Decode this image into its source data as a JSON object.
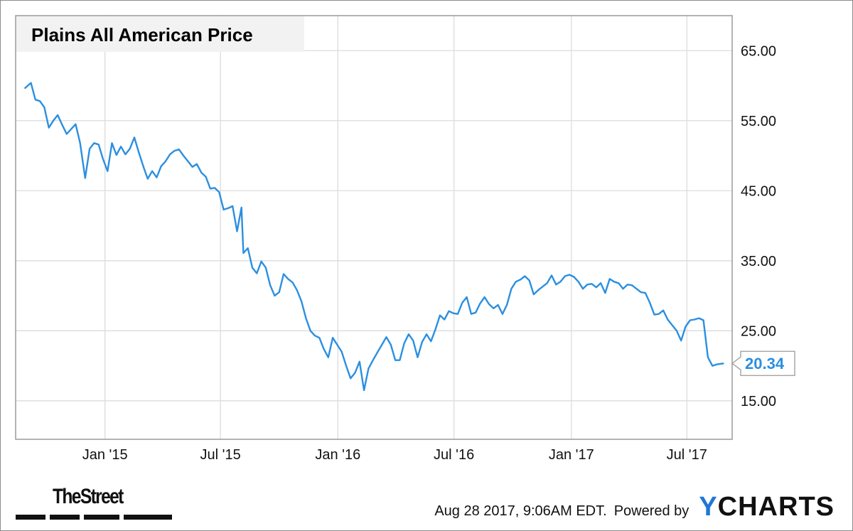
{
  "chart_data": {
    "type": "line",
    "title": "Plains All American Price",
    "xlabel": "",
    "ylabel": "",
    "x_tick_labels": [
      "Jan '15",
      "Jul '15",
      "Jan '16",
      "Jul '16",
      "Jan '17",
      "Jul '17"
    ],
    "y_tick_labels": [
      "65.00",
      "55.00",
      "45.00",
      "35.00",
      "25.00",
      "15.00"
    ],
    "ylim": [
      9.5,
      70
    ],
    "grid": true,
    "last_value_label": "20.34",
    "series": [
      {
        "color": "#2b8fe0",
        "points": [
          [
            "2014-08-28",
            59.6
          ],
          [
            "2014-09-07",
            60.4
          ],
          [
            "2014-09-14",
            58.0
          ],
          [
            "2014-09-21",
            57.8
          ],
          [
            "2014-09-28",
            56.9
          ],
          [
            "2014-10-05",
            54.0
          ],
          [
            "2014-10-12",
            55.0
          ],
          [
            "2014-10-19",
            55.8
          ],
          [
            "2014-10-26",
            54.4
          ],
          [
            "2014-11-02",
            53.1
          ],
          [
            "2014-11-09",
            53.8
          ],
          [
            "2014-11-16",
            54.5
          ],
          [
            "2014-11-23",
            51.8
          ],
          [
            "2014-12-01",
            46.8
          ],
          [
            "2014-12-08",
            51.0
          ],
          [
            "2014-12-15",
            51.8
          ],
          [
            "2014-12-22",
            51.6
          ],
          [
            "2014-12-29",
            49.5
          ],
          [
            "2015-01-05",
            47.8
          ],
          [
            "2015-01-12",
            51.8
          ],
          [
            "2015-01-19",
            50.1
          ],
          [
            "2015-01-26",
            51.3
          ],
          [
            "2015-02-02",
            50.2
          ],
          [
            "2015-02-09",
            51.0
          ],
          [
            "2015-02-16",
            52.6
          ],
          [
            "2015-02-23",
            50.5
          ],
          [
            "2015-03-02",
            48.5
          ],
          [
            "2015-03-09",
            46.7
          ],
          [
            "2015-03-16",
            47.8
          ],
          [
            "2015-03-23",
            46.9
          ],
          [
            "2015-03-30",
            48.5
          ],
          [
            "2015-04-06",
            49.2
          ],
          [
            "2015-04-13",
            50.2
          ],
          [
            "2015-04-20",
            50.7
          ],
          [
            "2015-04-27",
            50.9
          ],
          [
            "2015-05-04",
            50.0
          ],
          [
            "2015-05-11",
            49.2
          ],
          [
            "2015-05-18",
            48.4
          ],
          [
            "2015-05-25",
            48.8
          ],
          [
            "2015-06-01",
            47.6
          ],
          [
            "2015-06-08",
            47.0
          ],
          [
            "2015-06-15",
            45.3
          ],
          [
            "2015-06-22",
            45.4
          ],
          [
            "2015-06-29",
            44.8
          ],
          [
            "2015-07-06",
            42.3
          ],
          [
            "2015-07-13",
            42.5
          ],
          [
            "2015-07-20",
            42.8
          ],
          [
            "2015-07-27",
            39.2
          ],
          [
            "2015-08-03",
            42.6
          ],
          [
            "2015-08-06",
            36.1
          ],
          [
            "2015-08-13",
            36.8
          ],
          [
            "2015-08-20",
            34.0
          ],
          [
            "2015-08-27",
            33.2
          ],
          [
            "2015-09-03",
            34.9
          ],
          [
            "2015-09-10",
            34.0
          ],
          [
            "2015-09-17",
            31.5
          ],
          [
            "2015-09-24",
            30.0
          ],
          [
            "2015-10-01",
            30.5
          ],
          [
            "2015-10-08",
            33.1
          ],
          [
            "2015-10-15",
            32.4
          ],
          [
            "2015-10-22",
            31.9
          ],
          [
            "2015-10-29",
            30.8
          ],
          [
            "2015-11-05",
            29.2
          ],
          [
            "2015-11-12",
            26.8
          ],
          [
            "2015-11-19",
            25.0
          ],
          [
            "2015-11-26",
            24.3
          ],
          [
            "2015-12-03",
            24.0
          ],
          [
            "2015-12-10",
            22.4
          ],
          [
            "2015-12-17",
            21.2
          ],
          [
            "2015-12-24",
            24.0
          ],
          [
            "2015-12-31",
            23.0
          ],
          [
            "2016-01-07",
            22.0
          ],
          [
            "2016-01-14",
            20.0
          ],
          [
            "2016-01-21",
            18.2
          ],
          [
            "2016-01-28",
            19.0
          ],
          [
            "2016-02-04",
            20.6
          ],
          [
            "2016-02-11",
            16.5
          ],
          [
            "2016-02-18",
            19.6
          ],
          [
            "2016-02-25",
            20.8
          ],
          [
            "2016-03-03",
            21.9
          ],
          [
            "2016-03-10",
            23.0
          ],
          [
            "2016-03-17",
            24.1
          ],
          [
            "2016-03-24",
            23.0
          ],
          [
            "2016-03-31",
            20.8
          ],
          [
            "2016-04-07",
            20.8
          ],
          [
            "2016-04-14",
            23.2
          ],
          [
            "2016-04-21",
            24.5
          ],
          [
            "2016-04-28",
            23.6
          ],
          [
            "2016-05-05",
            21.2
          ],
          [
            "2016-05-12",
            23.4
          ],
          [
            "2016-05-19",
            24.5
          ],
          [
            "2016-05-26",
            23.5
          ],
          [
            "2016-06-02",
            25.2
          ],
          [
            "2016-06-09",
            27.2
          ],
          [
            "2016-06-16",
            26.6
          ],
          [
            "2016-06-23",
            27.8
          ],
          [
            "2016-06-30",
            27.5
          ],
          [
            "2016-07-07",
            27.4
          ],
          [
            "2016-07-14",
            29.0
          ],
          [
            "2016-07-21",
            29.8
          ],
          [
            "2016-07-28",
            27.4
          ],
          [
            "2016-08-04",
            27.6
          ],
          [
            "2016-08-11",
            28.9
          ],
          [
            "2016-08-18",
            29.8
          ],
          [
            "2016-08-25",
            28.8
          ],
          [
            "2016-09-01",
            28.2
          ],
          [
            "2016-09-08",
            28.7
          ],
          [
            "2016-09-15",
            27.4
          ],
          [
            "2016-09-22",
            28.7
          ],
          [
            "2016-09-29",
            31.0
          ],
          [
            "2016-10-06",
            32.0
          ],
          [
            "2016-10-13",
            32.3
          ],
          [
            "2016-10-20",
            32.8
          ],
          [
            "2016-10-27",
            32.2
          ],
          [
            "2016-11-03",
            30.2
          ],
          [
            "2016-11-10",
            30.8
          ],
          [
            "2016-11-17",
            31.3
          ],
          [
            "2016-11-24",
            31.8
          ],
          [
            "2016-12-01",
            32.9
          ],
          [
            "2016-12-08",
            31.6
          ],
          [
            "2016-12-15",
            32.0
          ],
          [
            "2016-12-22",
            32.8
          ],
          [
            "2016-12-29",
            33.0
          ],
          [
            "2017-01-05",
            32.7
          ],
          [
            "2017-01-12",
            32.0
          ],
          [
            "2017-01-19",
            31.0
          ],
          [
            "2017-01-26",
            31.6
          ],
          [
            "2017-02-02",
            31.7
          ],
          [
            "2017-02-09",
            31.2
          ],
          [
            "2017-02-16",
            31.8
          ],
          [
            "2017-02-23",
            30.4
          ],
          [
            "2017-03-02",
            32.4
          ],
          [
            "2017-03-09",
            32.0
          ],
          [
            "2017-03-16",
            31.8
          ],
          [
            "2017-03-23",
            31.0
          ],
          [
            "2017-03-30",
            31.6
          ],
          [
            "2017-04-06",
            31.5
          ],
          [
            "2017-04-13",
            31.0
          ],
          [
            "2017-04-20",
            30.5
          ],
          [
            "2017-04-27",
            30.4
          ],
          [
            "2017-05-04",
            29.0
          ],
          [
            "2017-05-11",
            27.3
          ],
          [
            "2017-05-18",
            27.4
          ],
          [
            "2017-05-25",
            27.9
          ],
          [
            "2017-06-01",
            26.6
          ],
          [
            "2017-06-08",
            25.8
          ],
          [
            "2017-06-15",
            25.0
          ],
          [
            "2017-06-22",
            23.6
          ],
          [
            "2017-06-29",
            25.6
          ],
          [
            "2017-07-06",
            26.5
          ],
          [
            "2017-07-13",
            26.6
          ],
          [
            "2017-07-20",
            26.8
          ],
          [
            "2017-07-27",
            26.5
          ],
          [
            "2017-08-03",
            21.2
          ],
          [
            "2017-08-10",
            20.0
          ],
          [
            "2017-08-17",
            20.2
          ],
          [
            "2017-08-28",
            20.34
          ]
        ]
      }
    ]
  },
  "logo": {
    "text": "TheStreet"
  },
  "footer": {
    "timestamp": "Aug 28 2017, 9:06AM EDT.",
    "powered_by": "Powered by",
    "brand_initial": "Y",
    "brand_rest": "CHARTS"
  },
  "colors": {
    "line": "#2b8fe0",
    "grid": "#dcdcdc",
    "plot_border": "#9a9a9a",
    "ycharts_y": "#1f77d9"
  }
}
